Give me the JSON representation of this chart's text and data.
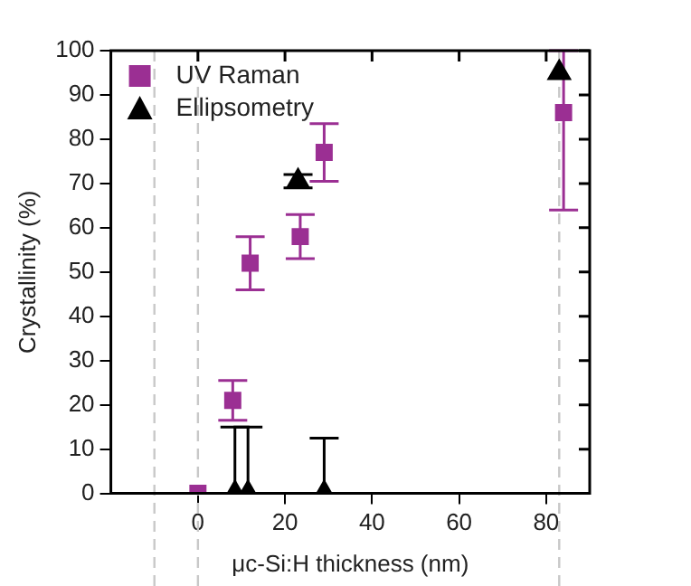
{
  "chart_data": {
    "type": "scatter",
    "xlabel": "μc-Si:H thickness (nm)",
    "ylabel": "Crystallinity (%)",
    "xlim": [
      -20,
      90
    ],
    "xticks": [
      0,
      20,
      40,
      60,
      80
    ],
    "ylim": [
      0,
      100
    ],
    "yticks": [
      0,
      10,
      20,
      30,
      40,
      50,
      60,
      70,
      80,
      90,
      100
    ],
    "grid": false,
    "legend": "top left",
    "series": [
      {
        "name": "UV Raman",
        "color": "#9b2f93",
        "marker": "square",
        "x": [
          0,
          8,
          12,
          23.5,
          29,
          84
        ],
        "values": [
          0,
          21,
          52,
          58,
          77,
          86
        ],
        "errors": [
          null,
          4.5,
          6,
          5,
          6.5,
          [
            64,
            100
          ]
        ]
      },
      {
        "name": "Ellipsometry",
        "color": "#000000",
        "marker": "triangle",
        "x": [
          8.5,
          11.5,
          29,
          23,
          83
        ],
        "values": [
          0,
          0,
          0,
          70.5,
          95
        ],
        "errors": [
          [
            0,
            15
          ],
          [
            0,
            15
          ],
          [
            0,
            12.5
          ],
          1.5,
          null
        ]
      }
    ],
    "ref_lines": [
      {
        "axis": "x",
        "value": -10,
        "color": "#c8c8c8",
        "line_style": "dashed"
      },
      {
        "axis": "x",
        "value": 0,
        "color": "#c8c8c8",
        "line_style": "dashed"
      },
      {
        "axis": "x",
        "value": 83,
        "color": "#c8c8c8",
        "line_style": "dashed"
      }
    ]
  }
}
